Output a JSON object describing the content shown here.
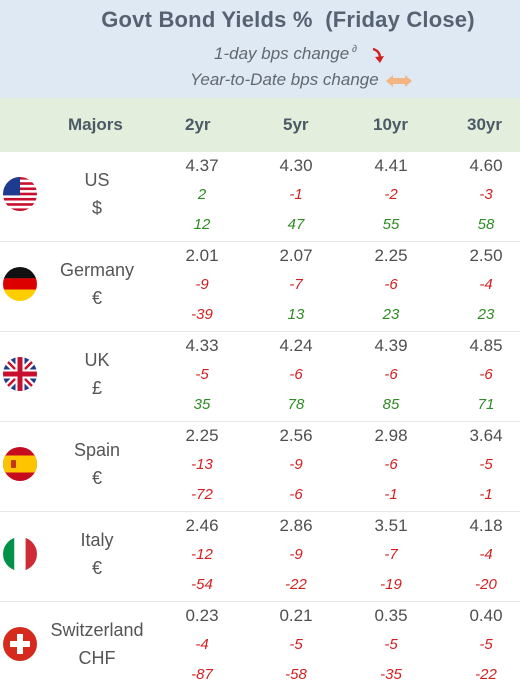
{
  "header": {
    "title": "Govt Bond Yields %  (Friday Close)",
    "subtitle_1day": "1-day bps change",
    "subtitle_1day_mark": "∂",
    "subtitle_ytd": "Year-to-Date bps change"
  },
  "columns": {
    "majors": "Majors",
    "tenors": [
      "2yr",
      "5yr",
      "10yr",
      "30yr"
    ]
  },
  "colors": {
    "header_bg": "#dfe9f3",
    "column_header_bg": "#e3efdc",
    "positive": "#2e8b23",
    "negative": "#d22020"
  },
  "rows": [
    {
      "country": "US",
      "currency": "$",
      "flag": "us-flag-icon",
      "yields": [
        "4.37",
        "4.30",
        "4.41",
        "4.60"
      ],
      "day": [
        "2",
        "-1",
        "-2",
        "-3"
      ],
      "ytd": [
        "12",
        "47",
        "55",
        "58"
      ]
    },
    {
      "country": "Germany",
      "currency": "€",
      "flag": "germany-flag-icon",
      "yields": [
        "2.01",
        "2.07",
        "2.25",
        "2.50"
      ],
      "day": [
        "-9",
        "-7",
        "-6",
        "-4"
      ],
      "ytd": [
        "-39",
        "13",
        "23",
        "23"
      ]
    },
    {
      "country": "UK",
      "currency": "£",
      "flag": "uk-flag-icon",
      "yields": [
        "4.33",
        "4.24",
        "4.39",
        "4.85"
      ],
      "day": [
        "-5",
        "-6",
        "-6",
        "-6"
      ],
      "ytd": [
        "35",
        "78",
        "85",
        "71"
      ]
    },
    {
      "country": "Spain",
      "currency": "€",
      "flag": "spain-flag-icon",
      "yields": [
        "2.25",
        "2.56",
        "2.98",
        "3.64"
      ],
      "day": [
        "-13",
        "-9",
        "-6",
        "-5"
      ],
      "ytd": [
        "-72",
        "-6",
        "-1",
        "-1"
      ]
    },
    {
      "country": "Italy",
      "currency": "€",
      "flag": "italy-flag-icon",
      "yields": [
        "2.46",
        "2.86",
        "3.51",
        "4.18"
      ],
      "day": [
        "-12",
        "-9",
        "-7",
        "-4"
      ],
      "ytd": [
        "-54",
        "-22",
        "-19",
        "-20"
      ]
    },
    {
      "country": "Switzerland",
      "currency": "CHF",
      "flag": "switzerland-flag-icon",
      "yields": [
        "0.23",
        "0.21",
        "0.35",
        "0.40"
      ],
      "day": [
        "-4",
        "-5",
        "-5",
        "-5"
      ],
      "ytd": [
        "-87",
        "-58",
        "-35",
        "-22"
      ]
    }
  ]
}
